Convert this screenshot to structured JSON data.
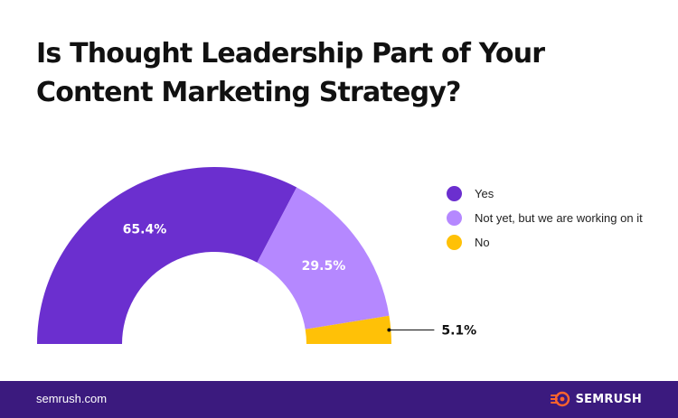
{
  "chart_data": {
    "type": "pie",
    "subtype": "semi-donut",
    "title": "Is Thought Leadership Part of Your Content Marketing Strategy?",
    "slices": [
      {
        "label": "Yes",
        "value": 65.4,
        "value_label": "65.4%",
        "color": "#6b2fcf"
      },
      {
        "label": "Not yet, but we are working on it",
        "value": 29.5,
        "value_label": "29.5%",
        "color": "#b588ff"
      },
      {
        "label": "No",
        "value": 5.1,
        "value_label": "5.1%",
        "color": "#ffc107"
      }
    ],
    "legend_position": "right"
  },
  "footer": {
    "site": "semrush.com",
    "brand": "SEMRUSH",
    "background": "#3b1a7e",
    "logo_color": "#ff642d",
    "logo_icon": "semrush-fireball-icon"
  }
}
